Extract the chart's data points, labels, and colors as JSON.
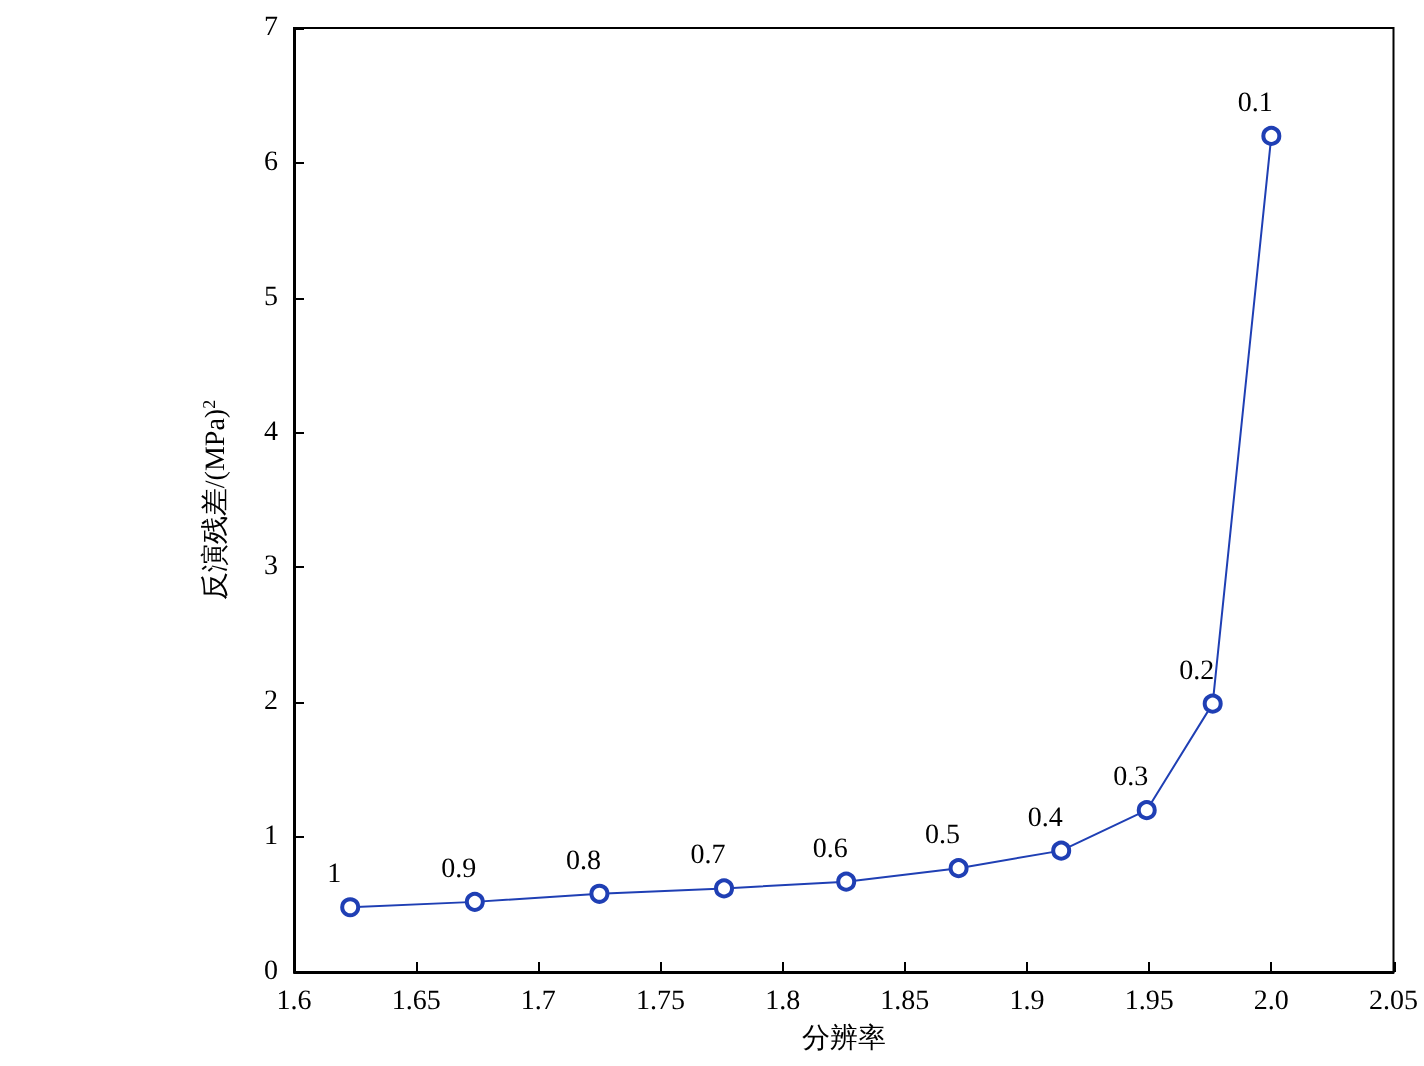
{
  "chart_data": {
    "type": "line",
    "xlabel": "分辨率",
    "ylabel": "反演残差/(MPa)$^{2}$",
    "x": [
      1.623,
      1.674,
      1.725,
      1.776,
      1.826,
      1.872,
      1.914,
      1.949,
      1.976,
      2.0
    ],
    "series": [
      {
        "color": "#1f3fb4",
        "values": [
          0.48,
          0.52,
          0.58,
          0.62,
          0.67,
          0.77,
          0.9,
          1.2,
          1.99,
          6.2
        ]
      }
    ],
    "xlim": [
      1.6,
      2.05
    ],
    "xticks": [
      1.6,
      1.65,
      1.7,
      1.75,
      1.8,
      1.85,
      1.9,
      1.95,
      {
        "value": 2,
        "label": "2.0"
      },
      2.05
    ],
    "ylim": [
      0,
      7
    ],
    "yticks": [
      0,
      1,
      2,
      3,
      4,
      5,
      6,
      7
    ],
    "annotations": [
      {
        "text": "1",
        "x": 1.623,
        "y": 0.48
      },
      {
        "text": "0.9",
        "x": 1.674,
        "y": 0.52
      },
      {
        "text": "0.8",
        "x": 1.725,
        "y": 0.58
      },
      {
        "text": "0.7",
        "x": 1.776,
        "y": 0.62
      },
      {
        "text": "0.6",
        "x": 1.826,
        "y": 0.67
      },
      {
        "text": "0.5",
        "x": 1.872,
        "y": 0.77
      },
      {
        "text": "0.4",
        "x": 1.914,
        "y": 0.9
      },
      {
        "text": "0.3",
        "x": 1.949,
        "y": 1.2
      },
      {
        "text": "0.2",
        "x": 1.976,
        "y": 1.99
      },
      {
        "text": "0.1",
        "x": 2.0,
        "y": 6.2
      }
    ],
    "grid": false,
    "marker": "circle",
    "line_style": "solid"
  }
}
